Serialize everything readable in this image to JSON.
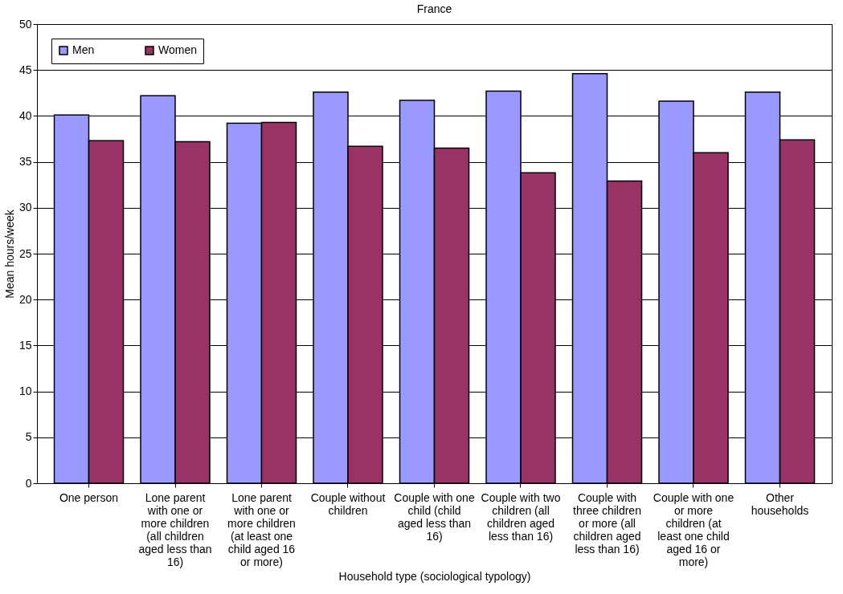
{
  "chart_data": {
    "type": "bar",
    "title": "France",
    "xlabel": "Household type (sociological typology)",
    "ylabel": "Mean hours/week",
    "categories": [
      "One person",
      "Lone parent with one or more children (all children aged less than 16)",
      "Lone parent with one or more children (at least one child aged 16 or more)",
      "Couple without children",
      "Couple with one child (child aged less than 16)",
      "Couple with two children (all children aged less than 16)",
      "Couple with three children or more (all children aged less than 16)",
      "Couple with one or more children (at least one child aged 16 or more)",
      "Other households"
    ],
    "series": [
      {
        "name": "Men",
        "color": "#9999ff",
        "values": [
          40.1,
          42.2,
          39.2,
          42.6,
          41.7,
          42.7,
          44.6,
          41.6,
          42.6
        ]
      },
      {
        "name": "Women",
        "color": "#993366",
        "values": [
          37.3,
          37.2,
          39.3,
          36.7,
          36.5,
          33.8,
          32.9,
          36.0,
          37.4
        ]
      }
    ],
    "ylim": [
      0,
      50
    ],
    "yticks": [
      0,
      5,
      10,
      15,
      20,
      25,
      30,
      35,
      40,
      45,
      50
    ],
    "grid": "y",
    "legend": "top left"
  }
}
